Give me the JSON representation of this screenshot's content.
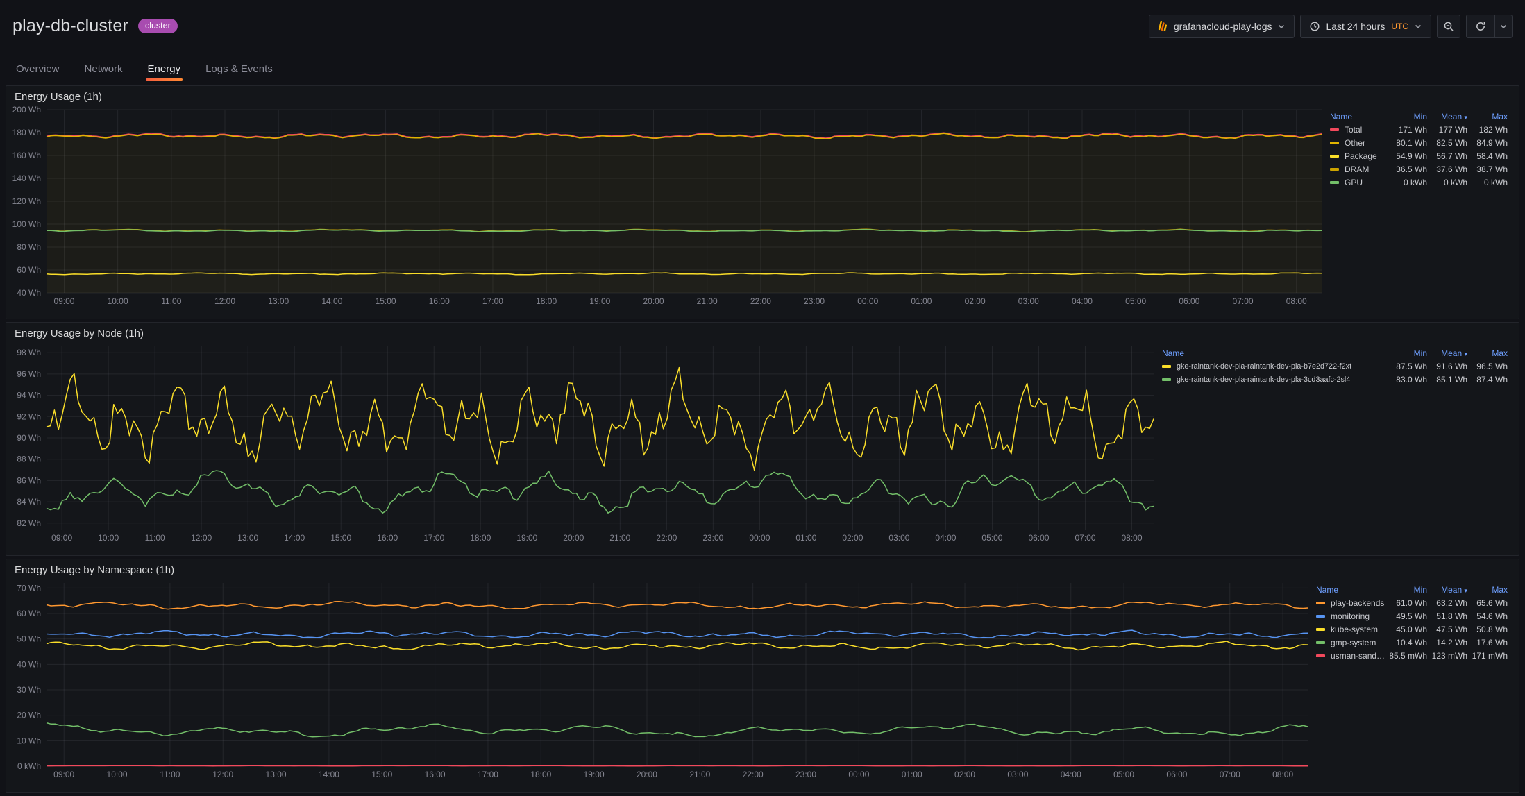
{
  "page": {
    "title": "play-db-cluster",
    "badge": "cluster"
  },
  "toolbar": {
    "datasource": {
      "label": "grafanacloud-play-logs"
    },
    "time_picker": {
      "label": "Last 24 hours",
      "timezone": "UTC"
    }
  },
  "tabs": [
    {
      "label": "Overview",
      "active": false
    },
    {
      "label": "Network",
      "active": false
    },
    {
      "label": "Energy",
      "active": true
    },
    {
      "label": "Logs & Events",
      "active": false
    }
  ],
  "legend_columns": [
    "Name",
    "Min",
    "Mean",
    "Max"
  ],
  "time_axis_labels": [
    "09:00",
    "10:00",
    "11:00",
    "12:00",
    "13:00",
    "14:00",
    "15:00",
    "16:00",
    "17:00",
    "18:00",
    "19:00",
    "20:00",
    "21:00",
    "22:00",
    "23:00",
    "00:00",
    "01:00",
    "02:00",
    "03:00",
    "04:00",
    "05:00",
    "06:00",
    "07:00",
    "08:00"
  ],
  "panels": [
    {
      "title": "Energy Usage (1h)",
      "chart_data": {
        "type": "line",
        "unit": "Wh",
        "x_labels_ref": "time_axis_labels",
        "ylim": [
          40,
          200
        ],
        "yticks": [
          [
            200,
            "200 Wh"
          ],
          [
            180,
            "180 Wh"
          ],
          [
            160,
            "160 Wh"
          ],
          [
            140,
            "140 Wh"
          ],
          [
            120,
            "120 Wh"
          ],
          [
            100,
            "100 Wh"
          ],
          [
            80,
            "80 Wh"
          ],
          [
            60,
            "60 Wh"
          ],
          [
            40,
            "40 Wh"
          ]
        ],
        "grid": true,
        "legend_position": "right",
        "note": "Stacked display: draw_level is the cumulative stack boundary where each line is rendered (Package; +DRAM; GPU at stack top; Other above; Total drawn as overlay at ~177 Wh). min/mean/max are per-series values from the legend.",
        "series": [
          {
            "name": "Total",
            "color": "#F2495C",
            "min": "171 Wh",
            "mean": "177 Wh",
            "max": "182 Wh",
            "min_wh": 171,
            "mean_wh": 177,
            "max_wh": 182,
            "draw_level": 177.4,
            "amp": 2.2,
            "cycles": 16,
            "seed": 7,
            "z": 4
          },
          {
            "name": "Other",
            "color": "#E0B400",
            "min": "80.1 Wh",
            "mean": "82.5 Wh",
            "max": "84.9 Wh",
            "min_wh": 80.1,
            "mean_wh": 82.5,
            "max_wh": 84.9,
            "draw_level": 176.8,
            "amp": 2.2,
            "cycles": 16,
            "seed": 7,
            "z": 5,
            "fill_to": 94.3,
            "fill_opacity": 0.05
          },
          {
            "name": "Package",
            "color": "#FADE2A",
            "min": "54.9 Wh",
            "mean": "56.7 Wh",
            "max": "58.4 Wh",
            "min_wh": 54.9,
            "mean_wh": 56.7,
            "max_wh": 58.4,
            "draw_level": 56.7,
            "amp": 0.8,
            "cycles": 14,
            "seed": 11,
            "z": 1,
            "fill_to": 40,
            "fill_opacity": 0.05
          },
          {
            "name": "DRAM",
            "color": "#CCA300",
            "min": "36.5 Wh",
            "mean": "37.6 Wh",
            "max": "38.7 Wh",
            "min_wh": 36.5,
            "mean_wh": 37.6,
            "max_wh": 38.7,
            "draw_level": 94.55,
            "amp": 1.0,
            "cycles": 12,
            "seed": 13,
            "z": 2,
            "fill_to": 56.7,
            "fill_opacity": 0.05
          },
          {
            "name": "GPU",
            "color": "#73BF69",
            "min": "0 kWh",
            "mean": "0 kWh",
            "max": "0 kWh",
            "min_wh": 0,
            "mean_wh": 0,
            "max_wh": 0,
            "draw_level": 94.3,
            "amp": 1.0,
            "cycles": 12,
            "seed": 13,
            "z": 3
          }
        ]
      }
    },
    {
      "title": "Energy Usage by Node (1h)",
      "chart_data": {
        "type": "line",
        "unit": "Wh",
        "x_labels_ref": "time_axis_labels",
        "ylim": [
          81.4,
          98.6
        ],
        "yticks": [
          [
            98,
            "98 Wh"
          ],
          [
            96,
            "96 Wh"
          ],
          [
            94,
            "94 Wh"
          ],
          [
            92,
            "92 Wh"
          ],
          [
            90,
            "90 Wh"
          ],
          [
            88,
            "88 Wh"
          ],
          [
            86,
            "86 Wh"
          ],
          [
            84,
            "84 Wh"
          ],
          [
            82,
            "82 Wh"
          ]
        ],
        "grid": true,
        "legend_position": "right",
        "series": [
          {
            "name": "gke-raintank-dev-pla-raintank-dev-pla-b7e2d722-f2xt",
            "color": "#FADE2A",
            "min": "87.5 Wh",
            "mean": "91.6 Wh",
            "max": "96.5 Wh",
            "min_wh": 87.5,
            "mean_wh": 91.6,
            "max_wh": 96.5,
            "draw_level": 91.6,
            "amp": 4.2,
            "cycles": 22,
            "seed": 3,
            "z": 2
          },
          {
            "name": "gke-raintank-dev-pla-raintank-dev-pla-3cd3aafc-2sl4",
            "color": "#73BF69",
            "min": "83.0 Wh",
            "mean": "85.1 Wh",
            "max": "87.4 Wh",
            "min_wh": 83.0,
            "mean_wh": 85.1,
            "max_wh": 87.4,
            "draw_level": 85.0,
            "amp": 2.0,
            "cycles": 10,
            "seed": 5,
            "z": 1
          }
        ]
      }
    },
    {
      "title": "Energy Usage by Namespace (1h)",
      "chart_data": {
        "type": "line",
        "unit": "Wh",
        "x_labels_ref": "time_axis_labels",
        "ylim": [
          0,
          72
        ],
        "yticks": [
          [
            70,
            "70 Wh"
          ],
          [
            60,
            "60 Wh"
          ],
          [
            50,
            "50 Wh"
          ],
          [
            40,
            "40 Wh"
          ],
          [
            30,
            "30 Wh"
          ],
          [
            20,
            "20 Wh"
          ],
          [
            10,
            "10 Wh"
          ],
          [
            0,
            "0 kWh"
          ]
        ],
        "grid": true,
        "legend_position": "right",
        "series": [
          {
            "name": "play-backends",
            "color": "#FF9830",
            "min": "61.0 Wh",
            "mean": "63.2 Wh",
            "max": "65.6 Wh",
            "min_wh": 61.0,
            "mean_wh": 63.2,
            "max_wh": 65.6,
            "draw_level": 63.2,
            "amp": 1.5,
            "cycles": 11,
            "seed": 17,
            "z": 1
          },
          {
            "name": "monitoring",
            "color": "#5794F2",
            "min": "49.5 Wh",
            "mean": "51.8 Wh",
            "max": "54.6 Wh",
            "min_wh": 49.5,
            "mean_wh": 51.8,
            "max_wh": 54.6,
            "draw_level": 51.8,
            "amp": 1.5,
            "cycles": 13,
            "seed": 19,
            "z": 2
          },
          {
            "name": "kube-system",
            "color": "#FADE2A",
            "min": "45.0 Wh",
            "mean": "47.5 Wh",
            "max": "50.8 Wh",
            "min_wh": 45.0,
            "mean_wh": 47.5,
            "max_wh": 50.8,
            "draw_level": 47.3,
            "amp": 1.6,
            "cycles": 13,
            "seed": 23,
            "z": 3
          },
          {
            "name": "gmp-system",
            "color": "#73BF69",
            "min": "10.4 Wh",
            "mean": "14.2 Wh",
            "max": "17.6 Wh",
            "min_wh": 10.4,
            "mean_wh": 14.2,
            "max_wh": 17.6,
            "draw_level": 14.0,
            "amp": 2.6,
            "cycles": 7,
            "seed": 29,
            "z": 4
          },
          {
            "name": "usman-sandbox",
            "color": "#F2495C",
            "min": "85.5 mWh",
            "mean": "123 mWh",
            "max": "171 mWh",
            "min_wh": 0.0855,
            "mean_wh": 0.123,
            "max_wh": 0.171,
            "draw_level": 0.15,
            "amp": 0.08,
            "cycles": 9,
            "seed": 31,
            "z": 5
          }
        ]
      }
    }
  ]
}
